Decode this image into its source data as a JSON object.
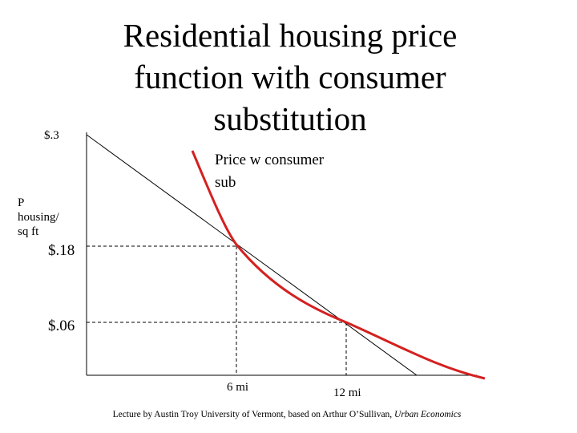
{
  "title": [
    "Residential housing price",
    "function with consumer",
    "substitution"
  ],
  "y_axis_label": [
    "P",
    "housing/",
    "sq ft"
  ],
  "y_labels": [
    "$.3",
    "$.18",
    "$.06"
  ],
  "x_labels": [
    "6 mi",
    "12 mi"
  ],
  "curve_label": [
    "Price w consumer",
    "sub"
  ],
  "footer": {
    "text": "Lecture by Austin Troy University of Vermont, based on Arthur O’Sullivan,",
    "source": "Urban Economics"
  }
}
